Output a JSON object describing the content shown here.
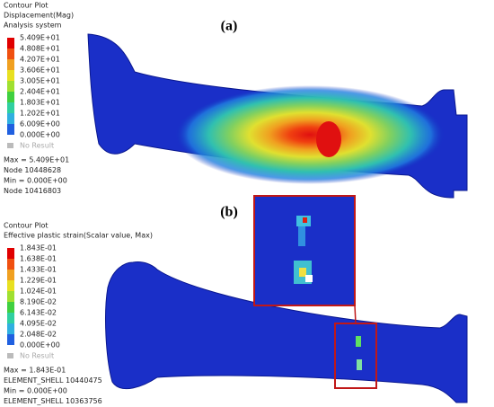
{
  "panel_a": {
    "label": "(a)",
    "legend": {
      "title": "Contour Plot",
      "quantity": "Displacement(Mag)",
      "system": "Analysis system",
      "levels": [
        "5.409E+01",
        "4.808E+01",
        "4.207E+01",
        "3.606E+01",
        "3.005E+01",
        "2.404E+01",
        "1.803E+01",
        "1.202E+01",
        "6.009E+00",
        "0.000E+00"
      ],
      "no_result": "No Result"
    },
    "stats": [
      "Max = 5.409E+01",
      "Node 10448628",
      "Min = 0.000E+00",
      "Node 10416803"
    ]
  },
  "panel_b": {
    "label": "(b)",
    "legend": {
      "title": "Contour Plot",
      "quantity": "Effective plastic strain(Scalar value, Max)",
      "levels": [
        "1.843E-01",
        "1.638E-01",
        "1.433E-01",
        "1.229E-01",
        "1.024E-01",
        "8.190E-02",
        "6.143E-02",
        "4.095E-02",
        "2.048E-02",
        "0.000E+00"
      ],
      "no_result": "No Result"
    },
    "stats": [
      "Max = 1.843E-01",
      "ELEMENT_SHELL 10440475",
      "Min = 0.000E+00",
      "ELEMENT_SHELL 10363756"
    ]
  }
}
